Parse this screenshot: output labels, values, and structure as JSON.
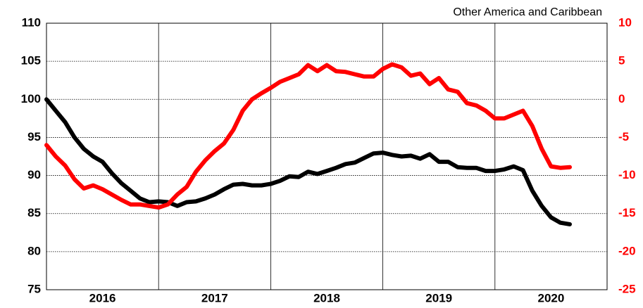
{
  "chart_data": {
    "type": "line",
    "title": "Other America and Caribbean",
    "categories": [
      "2016",
      "2017",
      "2018",
      "2019",
      "2020"
    ],
    "xlim": [
      2016,
      2021
    ],
    "xticks": [
      2017,
      2018,
      2019,
      2020
    ],
    "x": [
      2016,
      2016.083,
      2016.167,
      2016.25,
      2016.333,
      2016.417,
      2016.5,
      2016.583,
      2016.667,
      2016.75,
      2016.833,
      2016.917,
      2017,
      2017.083,
      2017.167,
      2017.25,
      2017.333,
      2017.417,
      2017.5,
      2017.583,
      2017.667,
      2017.75,
      2017.833,
      2017.917,
      2018,
      2018.083,
      2018.167,
      2018.25,
      2018.333,
      2018.417,
      2018.5,
      2018.583,
      2018.667,
      2018.75,
      2018.833,
      2018.917,
      2019,
      2019.083,
      2019.167,
      2019.25,
      2019.333,
      2019.417,
      2019.5,
      2019.583,
      2019.667,
      2019.75,
      2019.833,
      2019.917,
      2020,
      2020.083,
      2020.167,
      2020.25,
      2020.333,
      2020.417,
      2020.5,
      2020.583,
      2020.667
    ],
    "ylim": [
      75,
      110
    ],
    "yticks": [
      75,
      80,
      85,
      90,
      95,
      100,
      105,
      110
    ],
    "y2lim": [
      -25,
      10
    ],
    "y2ticks": [
      -25,
      -20,
      -15,
      -10,
      -5,
      0,
      5,
      10
    ],
    "grid": true,
    "series": [
      {
        "color": "#000000",
        "values": [
          100,
          98.5,
          97,
          95,
          93.5,
          92.5,
          91.8,
          90.3,
          89,
          88,
          87,
          86.5,
          86.6,
          86.5,
          86,
          86.5,
          86.6,
          87,
          87.5,
          88.2,
          88.8,
          88.9,
          88.7,
          88.7,
          88.9,
          89.3,
          89.9,
          89.8,
          90.5,
          90.2,
          90.6,
          91,
          91.5,
          91.7,
          92.3,
          92.9,
          93,
          92.7,
          92.5,
          92.6,
          92.2,
          92.8,
          91.8,
          91.8,
          91.1,
          91,
          91,
          90.6,
          90.6,
          90.8,
          91.2,
          90.7,
          88,
          86,
          84.5,
          83.8,
          83.6
        ]
      },
      {
        "color": "#ff0000",
        "axis": "y2",
        "values": [
          -6,
          -7.5,
          -8.7,
          -10.5,
          -11.7,
          -11.3,
          -11.8,
          -12.5,
          -13.2,
          -13.8,
          -13.8,
          -14,
          -14.2,
          -13.8,
          -12.5,
          -11.5,
          -9.5,
          -8,
          -6.8,
          -5.8,
          -4,
          -1.5,
          0,
          0.8,
          1.5,
          2.3,
          2.8,
          3.3,
          4.5,
          3.7,
          4.5,
          3.7,
          3.6,
          3.3,
          3,
          3,
          4,
          4.6,
          4.2,
          3.1,
          3.4,
          2,
          2.8,
          1.3,
          1,
          -0.5,
          -0.8,
          -1.5,
          -2.5,
          -2.5,
          -2,
          -1.5,
          -3.5,
          -6.5,
          -8.8,
          -9,
          -8.9
        ]
      }
    ]
  }
}
